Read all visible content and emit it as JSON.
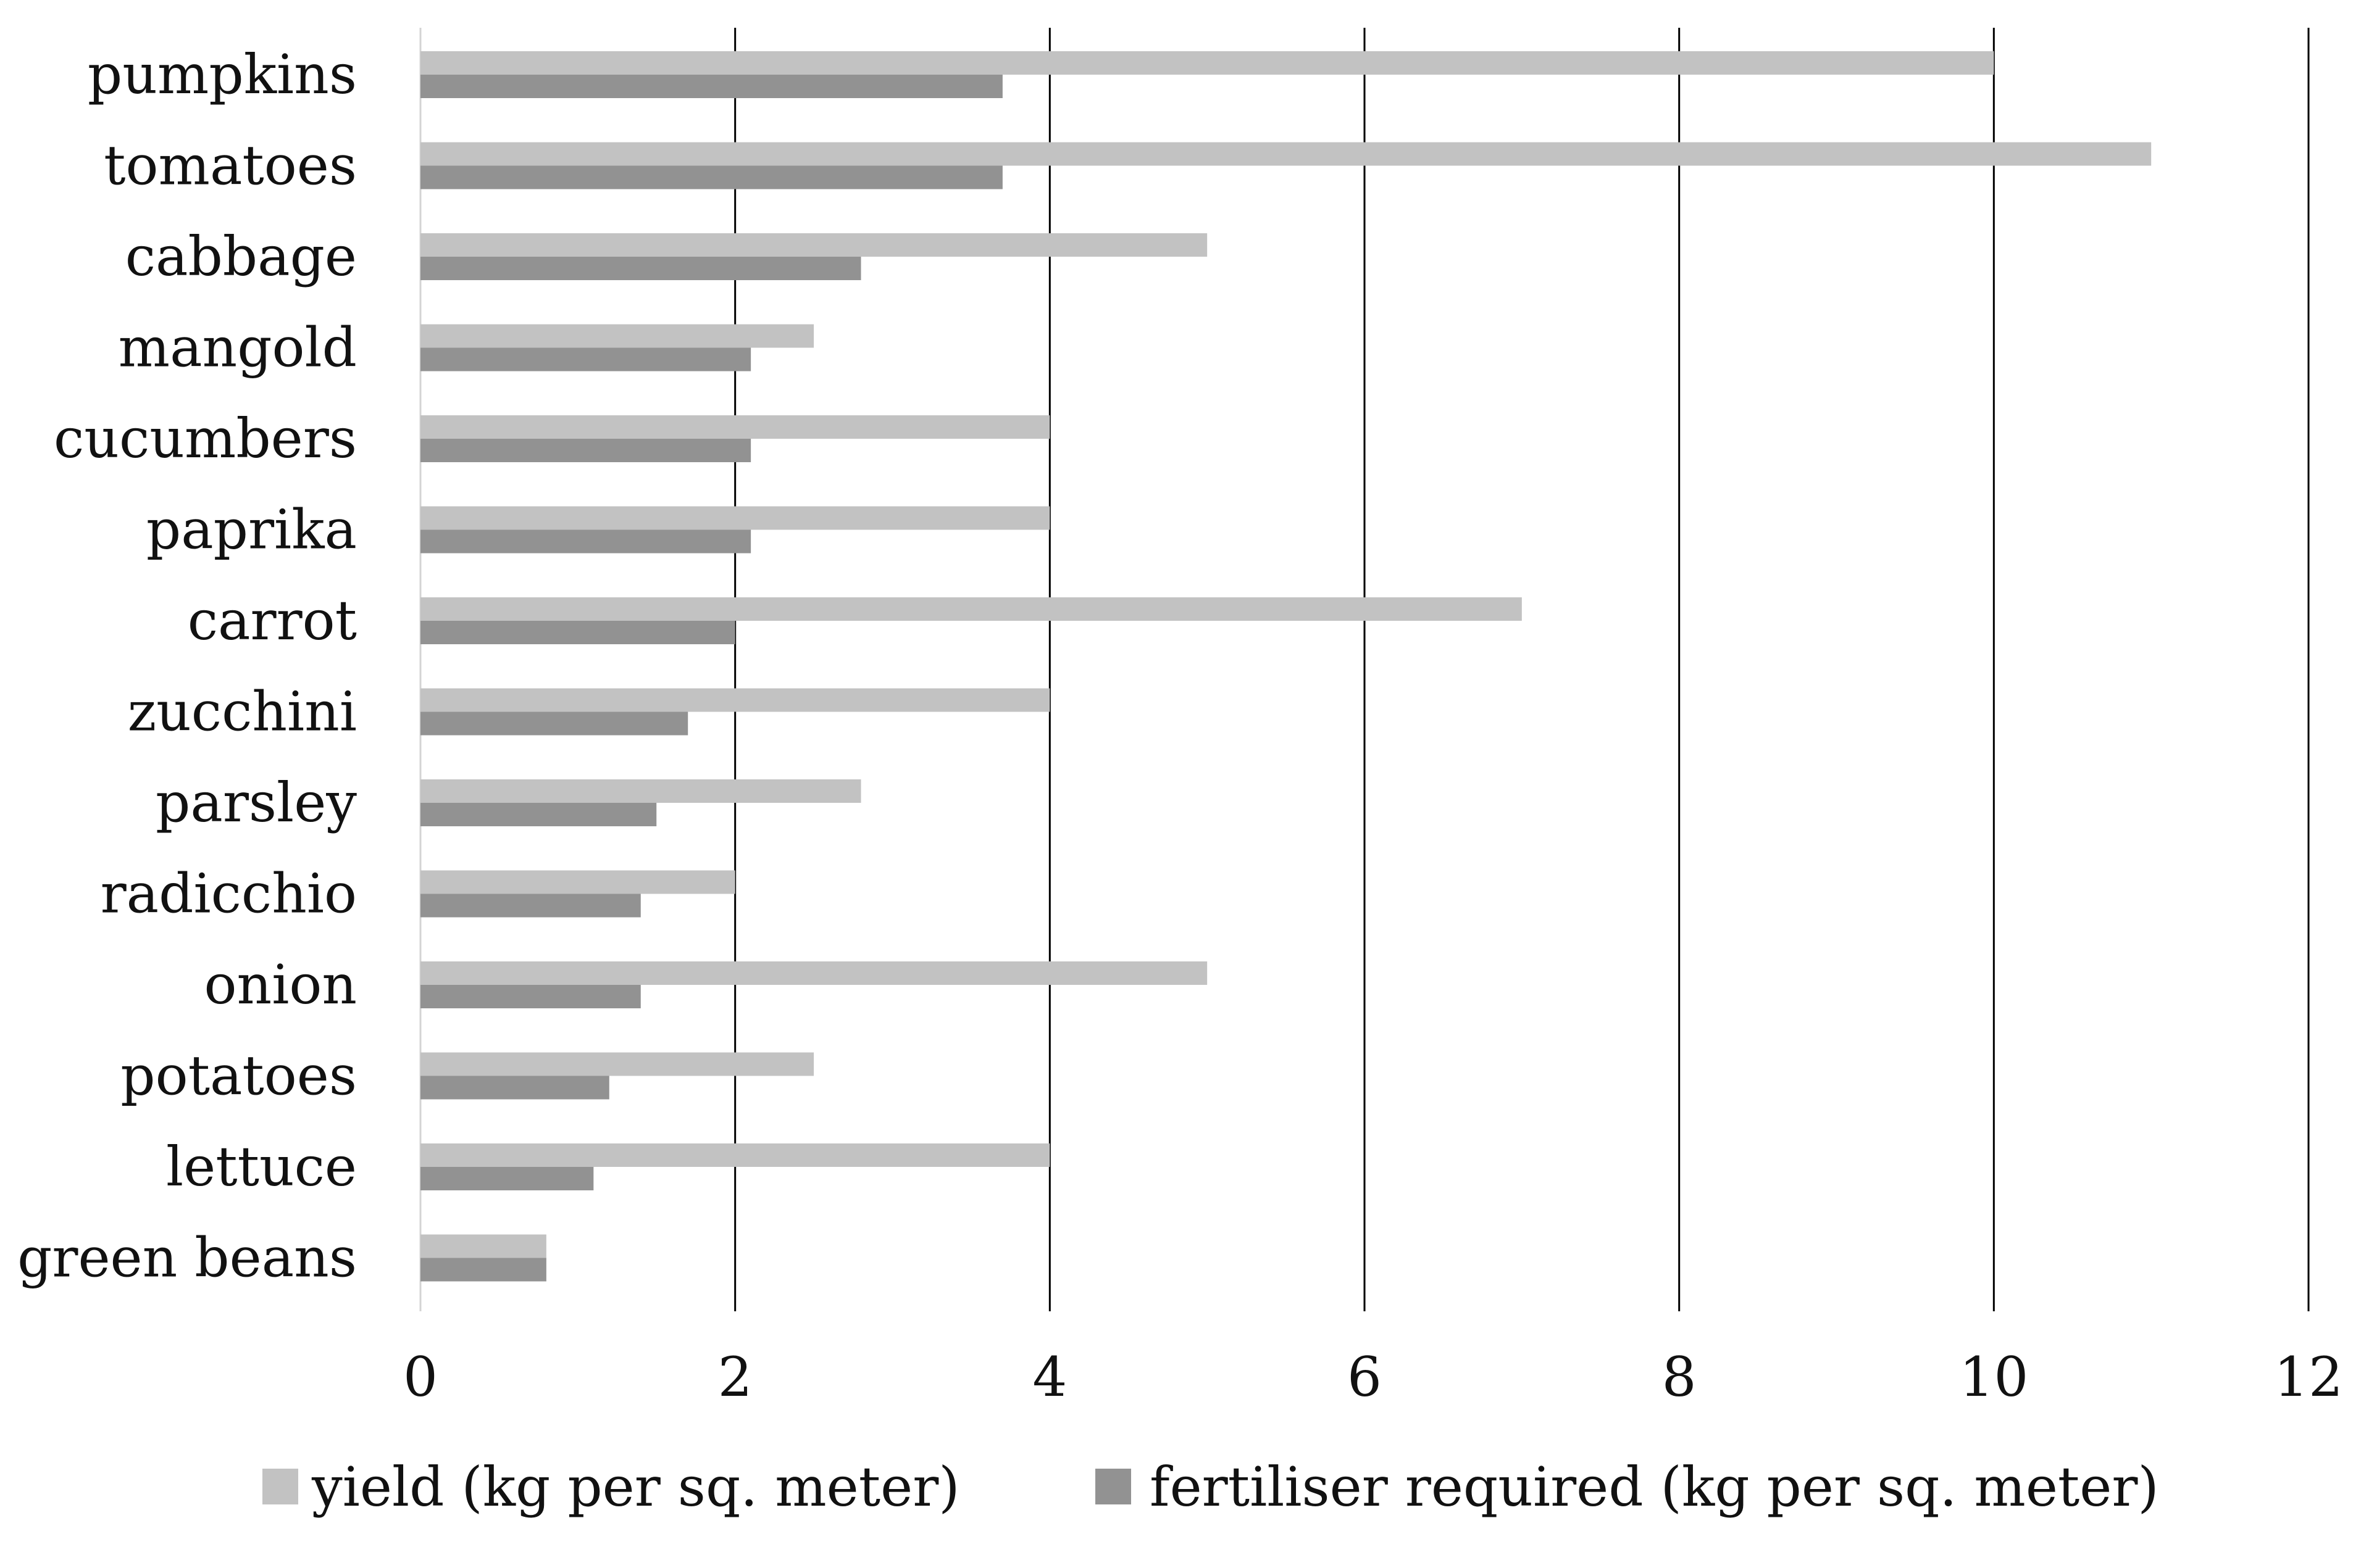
{
  "chart_data": {
    "type": "bar",
    "orientation": "horizontal",
    "categories": [
      "pumpkins",
      "tomatoes",
      "cabbage",
      "mangold",
      "cucumbers",
      "paprika",
      "carrot",
      "zucchini",
      "parsley",
      "radicchio",
      "onion",
      "potatoes",
      "lettuce",
      "green beans"
    ],
    "series": [
      {
        "name": "yield (kg per sq. meter)",
        "color": "#c2c2c2",
        "values": [
          10,
          11,
          5,
          2.5,
          4,
          4,
          7,
          4,
          2.8,
          2,
          5,
          2.5,
          4,
          0.8
        ]
      },
      {
        "name": "fertiliser required (kg per sq. meter)",
        "color": "#929292",
        "values": [
          3.7,
          3.7,
          2.8,
          2.1,
          2.1,
          2.1,
          2.0,
          1.7,
          1.5,
          1.4,
          1.4,
          1.2,
          1.1,
          0.8
        ]
      }
    ],
    "xlim": [
      0,
      12
    ],
    "xticks": [
      "0",
      "2",
      "4",
      "6",
      "8",
      "10",
      "12"
    ],
    "title": "",
    "xlabel": "",
    "ylabel": "",
    "grid": "vertical",
    "legend_position": "bottom",
    "gridline_color": "#000000"
  }
}
